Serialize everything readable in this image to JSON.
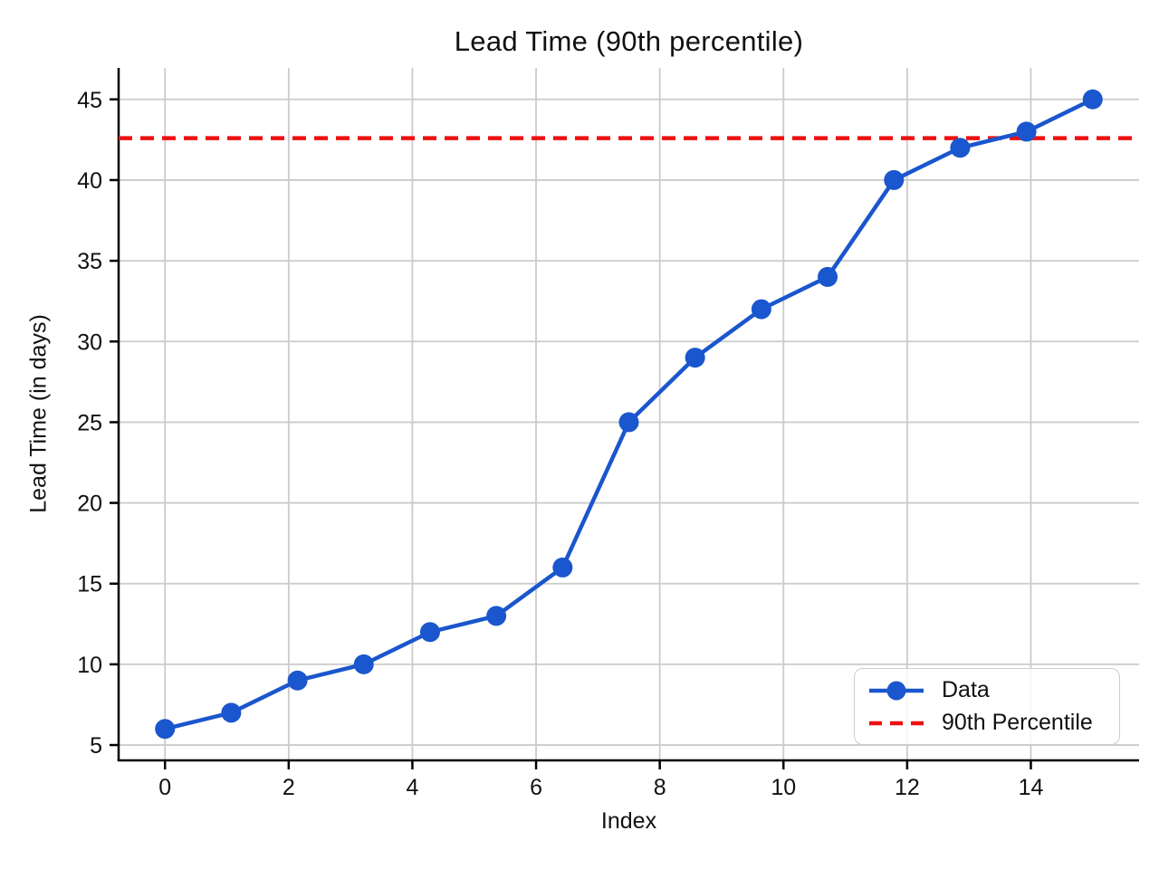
{
  "chart_data": {
    "type": "line",
    "title": "Lead Time (90th percentile)",
    "xlabel": "Index",
    "ylabel": "Lead Time (in days)",
    "x": [
      0,
      1.071,
      2.143,
      3.214,
      4.286,
      5.357,
      6.429,
      7.5,
      8.571,
      9.643,
      10.714,
      11.786,
      12.857,
      13.929,
      15
    ],
    "series": [
      {
        "name": "Data",
        "style": "solid-line-with-circle-markers",
        "color": "#1a56cd",
        "values": [
          6,
          7,
          9,
          10,
          12,
          13,
          16,
          25,
          29,
          32,
          34,
          40,
          42,
          43,
          45
        ]
      },
      {
        "name": "90th Percentile",
        "style": "dashed-horizontal-line",
        "color": "#ee1010",
        "value": 42.6
      }
    ],
    "xlim": [
      -0.75,
      15.75
    ],
    "ylim": [
      4.05,
      46.95
    ],
    "xticks": [
      0,
      2,
      4,
      6,
      8,
      10,
      12,
      14
    ],
    "yticks": [
      5,
      10,
      15,
      20,
      25,
      30,
      35,
      40,
      45
    ],
    "grid": true,
    "grid_color": "#cbcbcb",
    "axis_color": "#000000",
    "tick_label_color": "#111111",
    "legend_position": "lower-right"
  }
}
